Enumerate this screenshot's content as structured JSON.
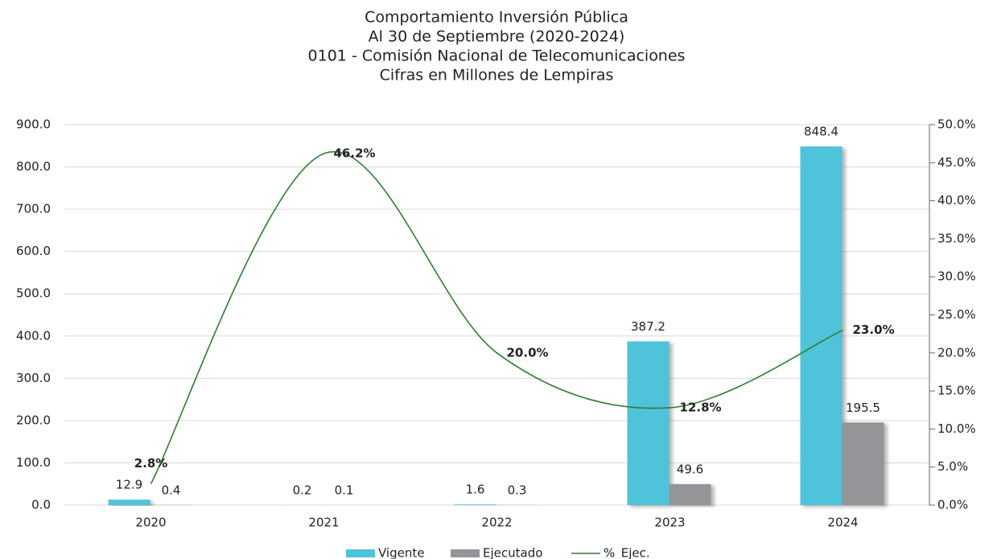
{
  "chart_data": {
    "type": "bar_line",
    "title": [
      "Comportamiento Inversión Pública",
      "Al 30 de Septiembre (2020-2024)",
      "0101 - Comisión Nacional de Telecomunicaciones",
      "Cifras en Millones de Lempiras"
    ],
    "categories": [
      "2020",
      "2021",
      "2022",
      "2023",
      "2024"
    ],
    "series": [
      {
        "name": "Vigente",
        "color": "#4fc3d9",
        "type": "bar",
        "values": [
          12.9,
          0.2,
          1.6,
          387.2,
          848.4
        ],
        "value_labels": [
          "12.9",
          "0.2",
          "1.6",
          "387.2",
          "848.4"
        ]
      },
      {
        "name": "Ejecutado",
        "color": "#939598",
        "type": "bar",
        "values": [
          0.4,
          0.1,
          0.3,
          49.6,
          195.5
        ],
        "value_labels": [
          "0.4",
          "0.1",
          "0.3",
          "49.6",
          "195.5"
        ]
      },
      {
        "name": "%_Ejec.",
        "color": "#2e7d32",
        "type": "line",
        "axis": "y2",
        "values": [
          2.8,
          46.2,
          20.0,
          12.8,
          23.0
        ],
        "value_labels": [
          "2.8%",
          "46.2%",
          "20.0%",
          "12.8%",
          "23.0%"
        ]
      }
    ],
    "ylim": [
      0,
      900
    ],
    "yticks": [
      {
        "value": 0,
        "label": "0.0"
      },
      {
        "value": 100,
        "label": "100.0"
      },
      {
        "value": 200,
        "label": "200.0"
      },
      {
        "value": 300,
        "label": "300.0"
      },
      {
        "value": 400,
        "label": "400.0"
      },
      {
        "value": 500,
        "label": "500.0"
      },
      {
        "value": 600,
        "label": "600.0"
      },
      {
        "value": 700,
        "label": "700.0"
      },
      {
        "value": 800,
        "label": "800.0"
      },
      {
        "value": 900,
        "label": "900.0"
      }
    ],
    "y2lim": [
      0,
      50
    ],
    "y2ticks": [
      {
        "value": 0,
        "label": "0.0%"
      },
      {
        "value": 5,
        "label": "5.0%"
      },
      {
        "value": 10,
        "label": "10.0%"
      },
      {
        "value": 15,
        "label": "15.0%"
      },
      {
        "value": 20,
        "label": "20.0%"
      },
      {
        "value": 25,
        "label": "25.0%"
      },
      {
        "value": 30,
        "label": "30.0%"
      },
      {
        "value": 35,
        "label": "35.0%"
      },
      {
        "value": 40,
        "label": "40.0%"
      },
      {
        "value": 45,
        "label": "45.0%"
      },
      {
        "value": 50,
        "label": "50.0%"
      }
    ],
    "grid": true,
    "legend": "bottom"
  }
}
